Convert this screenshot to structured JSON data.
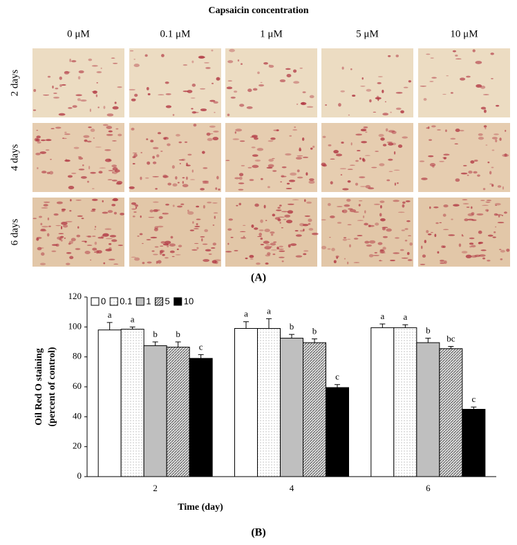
{
  "panel_a": {
    "title": "Capsaicin concentration",
    "columns": [
      "0 μM",
      "0.1 μM",
      "1 μM",
      "5 μM",
      "10 μM"
    ],
    "rows": [
      "2 days",
      "4 days",
      "6 days"
    ],
    "label": "(A)"
  },
  "chart_data": {
    "type": "bar",
    "panel_label": "(B)",
    "x_label": "Time (day)",
    "y_label": [
      "Oil Red O staining",
      "(percent of control)"
    ],
    "categories": [
      "2",
      "4",
      "6"
    ],
    "series": [
      {
        "name": "0",
        "color": "#ffffff",
        "values": [
          98,
          99,
          99.5
        ],
        "errors": [
          5,
          4.5,
          2.5
        ],
        "letters": [
          "a",
          "a",
          "a"
        ]
      },
      {
        "name": "0.1",
        "color": "#ffffff",
        "pattern": "dots",
        "values": [
          98.5,
          99,
          99.5
        ],
        "errors": [
          1.5,
          6.5,
          2
        ],
        "letters": [
          "a",
          "a",
          "a"
        ]
      },
      {
        "name": "1",
        "color": "#bfbfbf",
        "values": [
          87.5,
          92.5,
          89.5
        ],
        "errors": [
          2.5,
          2.5,
          3
        ],
        "letters": [
          "b",
          "b",
          "b"
        ]
      },
      {
        "name": "5",
        "color": "#d9d9d9",
        "pattern": "hatch",
        "values": [
          86.5,
          89.5,
          85.5
        ],
        "errors": [
          3.5,
          2.5,
          1.5
        ],
        "letters": [
          "b",
          "b",
          "bc"
        ]
      },
      {
        "name": "10",
        "color": "#000000",
        "values": [
          79,
          59.5,
          45
        ],
        "errors": [
          2.5,
          2,
          1.5
        ],
        "letters": [
          "c",
          "c",
          "c"
        ]
      }
    ],
    "ylim": [
      0,
      120
    ],
    "yticks": [
      0,
      20,
      40,
      60,
      80,
      100,
      120
    ],
    "legend": "top-left"
  }
}
